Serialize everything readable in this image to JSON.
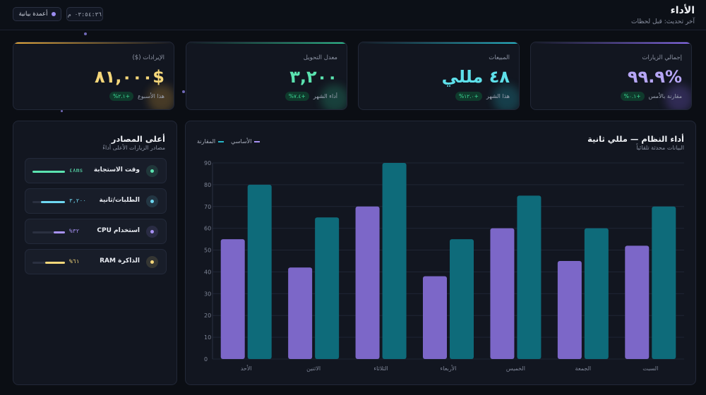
{
  "header": {
    "title": "الأداء",
    "subtitle": "آخر تحديث: قبل لحظات",
    "refresh_label": "أعمدة بيانية",
    "clock": "٠٣:٥٤:٣٦ م"
  },
  "kpis": [
    {
      "label": "إجمالي الزيارات",
      "value": "%٩٩.٩",
      "badge": "+٠.١%",
      "sub": "مقارنة بالأمس",
      "color": "#b6a6f5",
      "accent": "#8b6cf0"
    },
    {
      "label": "المبيعات",
      "value": "٤٨ مللي",
      "badge": "+١٢.٠%",
      "sub": "هذا الشهر",
      "color": "#5ee0ea",
      "accent": "#27b8c9"
    },
    {
      "label": "معدل التحويل",
      "value": "٣,٢٠٠",
      "badge": "+٧.٤%",
      "sub": "أداء الشهر",
      "color": "#5be3b0",
      "accent": "#2fbf8e"
    },
    {
      "label": "الإيرادات ($)",
      "value": "$٨١,٠٠٠",
      "badge": "+٢.١%",
      "sub": "هذا الأسبوع",
      "color": "#f5d77a",
      "accent": "#e6a93b"
    }
  ],
  "sources": {
    "title": "أعلى المصادر",
    "subtitle": "مصادر الزيارات الأعلى أداءً",
    "items": [
      {
        "name": "وقت الاستجابة",
        "value": "٤٨ms",
        "fill": 1.0,
        "color": "#5be3b0"
      },
      {
        "name": "الطلبات/ثانية",
        "value": "٣,٢٠٠",
        "fill": 0.75,
        "color": "#6ed8f2"
      },
      {
        "name": "استخدام CPU",
        "value": "٣٢%",
        "fill": 0.35,
        "color": "#a892f5"
      },
      {
        "name": "الذاكرة RAM",
        "value": "٦١%",
        "fill": 0.6,
        "color": "#f5d77a"
      }
    ]
  },
  "chart": {
    "title": "أداء النظام — مللي ثانية",
    "subtitle": "البيانات محدثة تلقائياً",
    "legend_base": "الأساسي",
    "legend_compare": "المقارنة"
  },
  "chart_data": {
    "type": "bar",
    "categories": [
      "الأحد",
      "الاثنين",
      "الثلاثاء",
      "الأربعاء",
      "الخميس",
      "الجمعة",
      "السبت"
    ],
    "series": [
      {
        "name": "الأساسي",
        "values": [
          55,
          42,
          70,
          38,
          60,
          45,
          52
        ],
        "color": "#7c67c8"
      },
      {
        "name": "المقارنة",
        "values": [
          80,
          65,
          90,
          55,
          75,
          60,
          70
        ],
        "color": "#0e6b7a"
      }
    ],
    "ylim": [
      0,
      90
    ],
    "yticks": [
      0,
      10,
      20,
      30,
      40,
      50,
      60,
      70,
      80,
      90
    ],
    "grid": true,
    "legend_position": "top-left"
  }
}
